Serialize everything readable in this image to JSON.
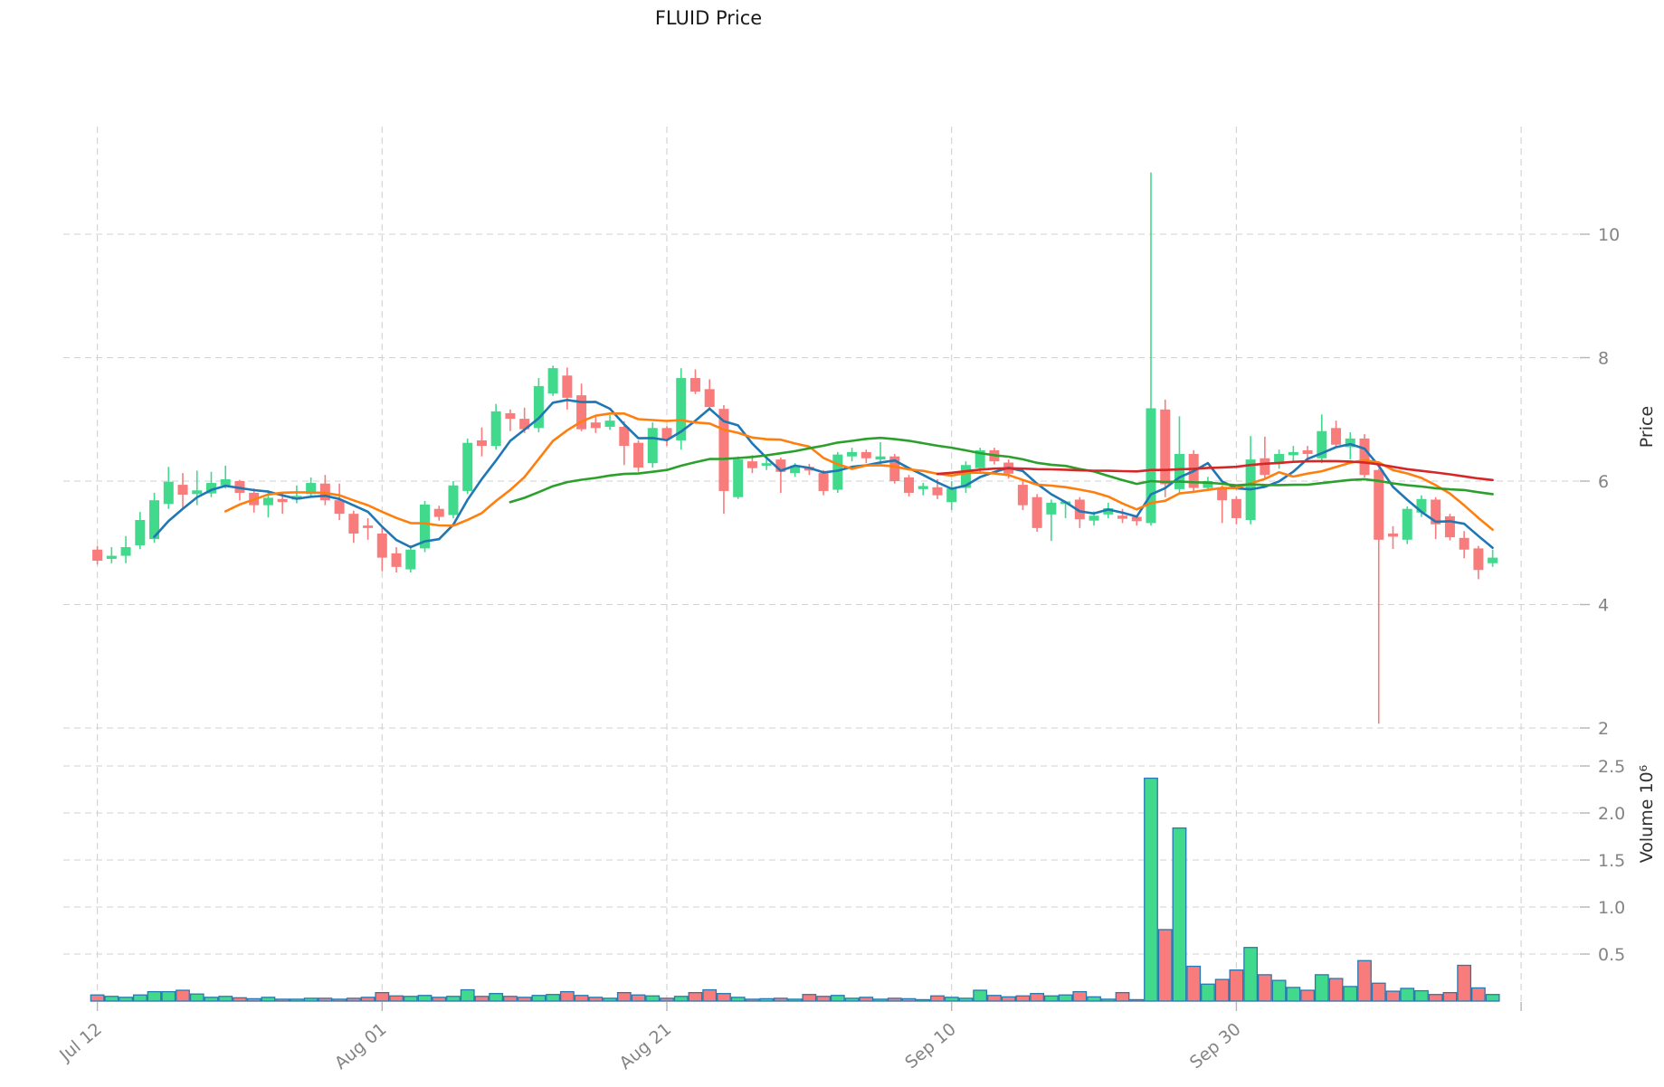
{
  "chart_data": {
    "type": "candlestick",
    "title": "FLUID Price",
    "price_axis_label": "Price",
    "volume_axis_label": "Volume  10⁶",
    "legend": "none",
    "grid": "dashed-on",
    "price_ticks": [
      "10",
      "8",
      "6",
      "4",
      "2"
    ],
    "price_tick_values": [
      10,
      8,
      6,
      4,
      2
    ],
    "volume_ticks": [
      "2.5",
      "2.0",
      "1.5",
      "1.0",
      "0.5"
    ],
    "volume_tick_values": [
      2.5,
      2.0,
      1.5,
      1.0,
      0.5
    ],
    "x_ticks": [
      {
        "day": 0,
        "label": "Jul 12"
      },
      {
        "day": 20,
        "label": "Aug 01"
      },
      {
        "day": 40,
        "label": "Aug 21"
      },
      {
        "day": 60,
        "label": "Sep 10"
      },
      {
        "day": 80,
        "label": "Sep 30"
      },
      {
        "day": 100,
        "label": ""
      }
    ],
    "moving_averages": [
      {
        "name": "ma-5",
        "window": 5,
        "color": "#1f77b4"
      },
      {
        "name": "ma-10",
        "window": 10,
        "color": "#ff7f0e"
      },
      {
        "name": "ma-30",
        "window": 30,
        "color": "#2ca02c"
      },
      {
        "name": "ma-60",
        "window": 60,
        "color": "#d62728"
      }
    ],
    "colors": {
      "up": "#41d98c",
      "down": "#f87c7c",
      "volume_edge": "#2679b2",
      "grid": "#d2d2d2",
      "tick_text": "#848484",
      "axis_label_text": "#303030"
    },
    "candles": [
      [
        "Jul 12",
        4.89,
        4.95,
        4.65,
        4.71,
        0.065
      ],
      [
        "Jul 13",
        4.74,
        4.93,
        4.67,
        4.79,
        0.05
      ],
      [
        "Jul 14",
        4.79,
        5.11,
        4.67,
        4.93,
        0.04
      ],
      [
        "Jul 15",
        4.96,
        5.5,
        4.9,
        5.37,
        0.065
      ],
      [
        "Jul 16",
        5.06,
        5.81,
        5.0,
        5.69,
        0.1
      ],
      [
        "Jul 17",
        5.63,
        6.23,
        5.55,
        5.99,
        0.1
      ],
      [
        "Jul 18",
        5.94,
        6.13,
        5.55,
        5.78,
        0.115
      ],
      [
        "Jul 19",
        5.79,
        6.17,
        5.61,
        5.85,
        0.075
      ],
      [
        "Jul 20",
        5.8,
        6.15,
        5.74,
        5.97,
        0.04
      ],
      [
        "Jul 21",
        5.93,
        6.25,
        5.88,
        6.03,
        0.05
      ],
      [
        "Jul 22",
        6.0,
        6.02,
        5.69,
        5.81,
        0.035
      ],
      [
        "Jul 23",
        5.81,
        5.88,
        5.49,
        5.61,
        0.025
      ],
      [
        "Jul 24",
        5.61,
        5.85,
        5.41,
        5.73,
        0.04
      ],
      [
        "Jul 25",
        5.71,
        5.81,
        5.47,
        5.66,
        0.02
      ],
      [
        "Jul 26",
        5.7,
        5.93,
        5.64,
        5.76,
        0.02
      ],
      [
        "Jul 27",
        5.79,
        6.06,
        5.74,
        5.97,
        0.03
      ],
      [
        "Jul 28",
        5.96,
        6.1,
        5.61,
        5.69,
        0.03
      ],
      [
        "Jul 29",
        5.69,
        5.96,
        5.37,
        5.47,
        0.02
      ],
      [
        "Jul 30",
        5.47,
        5.52,
        5.0,
        5.15,
        0.03
      ],
      [
        "Jul 31",
        5.28,
        5.4,
        5.05,
        5.24,
        0.04
      ],
      [
        "Aug 01",
        5.15,
        5.25,
        4.54,
        4.76,
        0.09
      ],
      [
        "Aug 02",
        4.83,
        4.93,
        4.52,
        4.61,
        0.055
      ],
      [
        "Aug 03",
        4.57,
        4.96,
        4.52,
        4.89,
        0.05
      ],
      [
        "Aug 04",
        4.91,
        5.68,
        4.85,
        5.62,
        0.06
      ],
      [
        "Aug 05",
        5.55,
        5.6,
        5.36,
        5.42,
        0.04
      ],
      [
        "Aug 06",
        5.45,
        6.0,
        5.4,
        5.93,
        0.05
      ],
      [
        "Aug 07",
        5.84,
        6.69,
        5.79,
        6.62,
        0.12
      ],
      [
        "Aug 08",
        6.66,
        6.87,
        6.4,
        6.57,
        0.05
      ],
      [
        "Aug 09",
        6.57,
        7.25,
        6.51,
        7.13,
        0.08
      ],
      [
        "Aug 10",
        7.1,
        7.16,
        6.81,
        7.01,
        0.05
      ],
      [
        "Aug 11",
        7.01,
        7.19,
        6.78,
        6.84,
        0.04
      ],
      [
        "Aug 12",
        6.86,
        7.67,
        6.79,
        7.54,
        0.06
      ],
      [
        "Aug 13",
        7.42,
        7.87,
        7.38,
        7.83,
        0.07
      ],
      [
        "Aug 14",
        7.71,
        7.84,
        7.16,
        7.35,
        0.1
      ],
      [
        "Aug 15",
        7.39,
        7.58,
        6.81,
        6.84,
        0.06
      ],
      [
        "Aug 16",
        6.95,
        7.04,
        6.78,
        6.86,
        0.04
      ],
      [
        "Aug 17",
        6.88,
        7.07,
        6.83,
        6.98,
        0.03
      ],
      [
        "Aug 18",
        6.88,
        6.97,
        6.26,
        6.57,
        0.09
      ],
      [
        "Aug 19",
        6.62,
        6.66,
        6.15,
        6.22,
        0.065
      ],
      [
        "Aug 20",
        6.29,
        6.95,
        6.22,
        6.86,
        0.055
      ],
      [
        "Aug 21",
        6.86,
        6.89,
        6.57,
        6.69,
        0.03
      ],
      [
        "Aug 22",
        6.66,
        7.83,
        6.51,
        7.67,
        0.05
      ],
      [
        "Aug 23",
        7.67,
        7.81,
        7.41,
        7.45,
        0.09
      ],
      [
        "Aug 24",
        7.49,
        7.65,
        7.16,
        7.2,
        0.12
      ],
      [
        "Aug 25",
        7.17,
        7.23,
        5.47,
        5.84,
        0.08
      ],
      [
        "Aug 26",
        5.74,
        6.4,
        5.71,
        6.35,
        0.04
      ],
      [
        "Aug 27",
        6.32,
        6.42,
        6.13,
        6.21,
        0.02
      ],
      [
        "Aug 28",
        6.25,
        6.37,
        6.18,
        6.29,
        0.025
      ],
      [
        "Aug 29",
        6.35,
        6.38,
        5.81,
        6.15,
        0.03
      ],
      [
        "Aug 30",
        6.13,
        6.29,
        6.07,
        6.25,
        0.02
      ],
      [
        "Aug 31",
        6.23,
        6.28,
        6.1,
        6.17,
        0.07
      ],
      [
        "Sep 01",
        6.13,
        6.18,
        5.77,
        5.84,
        0.05
      ],
      [
        "Sep 02",
        5.86,
        6.47,
        5.81,
        6.43,
        0.06
      ],
      [
        "Sep 03",
        6.4,
        6.54,
        6.32,
        6.47,
        0.03
      ],
      [
        "Sep 04",
        6.47,
        6.51,
        6.29,
        6.37,
        0.04
      ],
      [
        "Sep 05",
        6.35,
        6.63,
        6.25,
        6.4,
        0.02
      ],
      [
        "Sep 06",
        6.4,
        6.44,
        5.96,
        6.0,
        0.03
      ],
      [
        "Sep 07",
        6.06,
        6.1,
        5.75,
        5.81,
        0.025
      ],
      [
        "Sep 08",
        5.87,
        5.97,
        5.77,
        5.92,
        0.015
      ],
      [
        "Sep 09",
        5.9,
        6.03,
        5.71,
        5.77,
        0.055
      ],
      [
        "Sep 10",
        5.66,
        6.0,
        5.53,
        5.88,
        0.04
      ],
      [
        "Sep 11",
        5.89,
        6.32,
        5.81,
        6.26,
        0.03
      ],
      [
        "Sep 12",
        6.21,
        6.54,
        6.15,
        6.5,
        0.115
      ],
      [
        "Sep 13",
        6.5,
        6.54,
        6.27,
        6.32,
        0.06
      ],
      [
        "Sep 14",
        6.3,
        6.35,
        6.04,
        6.12,
        0.045
      ],
      [
        "Sep 15",
        5.94,
        6.0,
        5.53,
        5.61,
        0.055
      ],
      [
        "Sep 16",
        5.74,
        5.79,
        5.18,
        5.24,
        0.08
      ],
      [
        "Sep 17",
        5.46,
        5.7,
        5.03,
        5.65,
        0.055
      ],
      [
        "Sep 18",
        5.63,
        5.68,
        5.4,
        5.67,
        0.065
      ],
      [
        "Sep 19",
        5.7,
        5.74,
        5.24,
        5.38,
        0.1
      ],
      [
        "Sep 20",
        5.36,
        5.51,
        5.28,
        5.44,
        0.045
      ],
      [
        "Sep 21",
        5.46,
        5.65,
        5.4,
        5.56,
        0.02
      ],
      [
        "Sep 22",
        5.44,
        5.55,
        5.32,
        5.39,
        0.09
      ],
      [
        "Sep 23",
        5.42,
        5.45,
        5.28,
        5.35,
        0.015
      ],
      [
        "Sep 24",
        5.32,
        11.0,
        5.28,
        7.18,
        2.37
      ],
      [
        "Sep 25",
        7.16,
        7.32,
        5.74,
        5.95,
        0.76
      ],
      [
        "Sep 26",
        5.87,
        7.05,
        5.79,
        6.44,
        1.84
      ],
      [
        "Sep 27",
        6.44,
        6.5,
        5.81,
        5.89,
        0.37
      ],
      [
        "Sep 28",
        5.89,
        6.07,
        5.85,
        6.0,
        0.18
      ],
      [
        "Sep 29",
        5.88,
        5.93,
        5.32,
        5.69,
        0.23
      ],
      [
        "Sep 30",
        5.71,
        5.75,
        5.3,
        5.4,
        0.33
      ],
      [
        "Oct 01",
        5.37,
        6.73,
        5.3,
        6.35,
        0.57
      ],
      [
        "Oct 02",
        6.37,
        6.72,
        6.03,
        6.1,
        0.28
      ],
      [
        "Oct 03",
        6.28,
        6.51,
        6.2,
        6.44,
        0.22
      ],
      [
        "Oct 04",
        6.42,
        6.57,
        6.32,
        6.47,
        0.145
      ],
      [
        "Oct 05",
        6.5,
        6.57,
        6.35,
        6.44,
        0.115
      ],
      [
        "Oct 06",
        6.37,
        7.08,
        6.29,
        6.81,
        0.28
      ],
      [
        "Oct 07",
        6.86,
        6.98,
        6.55,
        6.59,
        0.24
      ],
      [
        "Oct 08",
        6.55,
        6.79,
        6.35,
        6.69,
        0.155
      ],
      [
        "Oct 09",
        6.69,
        6.76,
        6.06,
        6.1,
        0.43
      ],
      [
        "Oct 10",
        6.18,
        6.2,
        2.07,
        5.05,
        0.19
      ],
      [
        "Oct 11",
        5.15,
        5.27,
        4.9,
        5.1,
        0.105
      ],
      [
        "Oct 12",
        5.05,
        5.59,
        4.98,
        5.55,
        0.135
      ],
      [
        "Oct 13",
        5.49,
        5.77,
        5.42,
        5.71,
        0.11
      ],
      [
        "Oct 14",
        5.7,
        5.74,
        5.06,
        5.3,
        0.07
      ],
      [
        "Oct 15",
        5.43,
        5.47,
        5.04,
        5.09,
        0.09
      ],
      [
        "Oct 16",
        5.08,
        5.19,
        4.75,
        4.89,
        0.38
      ],
      [
        "Oct 17",
        4.91,
        4.95,
        4.41,
        4.56,
        0.14
      ],
      [
        "Oct 18",
        4.67,
        4.89,
        4.61,
        4.76,
        0.07
      ]
    ]
  }
}
